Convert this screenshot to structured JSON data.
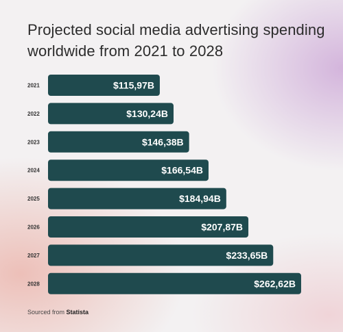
{
  "title": "Projected social media advertising spending worldwide from 2021 to 2028",
  "source": {
    "prefix": "Sourced from",
    "name": "Statista"
  },
  "chart_data": {
    "type": "bar",
    "orientation": "horizontal",
    "categories": [
      "2021",
      "2022",
      "2023",
      "2024",
      "2025",
      "2026",
      "2027",
      "2028"
    ],
    "values": [
      115.97,
      130.24,
      146.38,
      166.54,
      184.94,
      207.87,
      233.65,
      262.62
    ],
    "value_labels": [
      "$115,97B",
      "$130,24B",
      "$146,38B",
      "$166,54B",
      "$184,94B",
      "$207,87B",
      "$233,65B",
      "$262,62B"
    ],
    "title": "",
    "xlabel": "",
    "ylabel": "",
    "grid": false,
    "legend": "none",
    "bar_color": "#1f4a4e",
    "label_color": "#ffffff"
  }
}
